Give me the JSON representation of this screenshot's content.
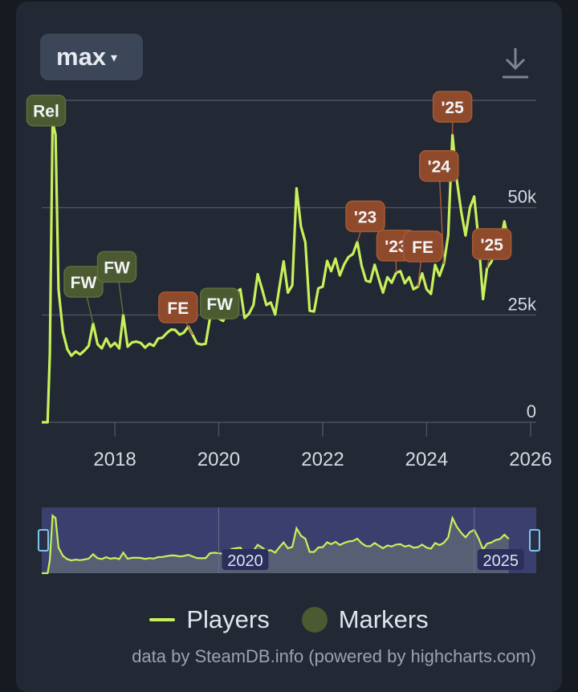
{
  "controls": {
    "range_label": "max",
    "range_caret": "▾",
    "download_icon": "download-icon"
  },
  "legend": {
    "players_label": "Players",
    "markers_label": "Markers"
  },
  "credits": "data by SteamDB.info (powered by highcharts.com)",
  "colors": {
    "series": "#c8f05a",
    "marker_green": "#4b5a30",
    "marker_orange": "#8f4a2c",
    "nav_bg": "#3a3f6e",
    "background": "#222834"
  },
  "chart_data": {
    "type": "line",
    "y_ticks": [
      {
        "value": 0,
        "label": "0"
      },
      {
        "value": 25000,
        "label": "25k"
      },
      {
        "value": 50000,
        "label": "50k"
      }
    ],
    "ylim": [
      0,
      75000
    ],
    "x_ticks": [
      {
        "value": "2018-01-01",
        "label": "2018"
      },
      {
        "value": "2020-01-01",
        "label": "2020"
      },
      {
        "value": "2022-01-01",
        "label": "2022"
      },
      {
        "value": "2024-01-01",
        "label": "2024"
      },
      {
        "value": "2026-01-01",
        "label": "2026"
      }
    ],
    "xlim": [
      "2016-08-05",
      "2026-02-10"
    ],
    "series": [
      {
        "name": "Players",
        "points": [
          [
            "2016-08-05",
            0
          ],
          [
            "2016-09-15",
            0
          ],
          [
            "2016-10-01",
            16000
          ],
          [
            "2016-10-20",
            70000
          ],
          [
            "2016-11-10",
            67000
          ],
          [
            "2016-12-01",
            31000
          ],
          [
            "2017-01-01",
            21000
          ],
          [
            "2017-02-01",
            17000
          ],
          [
            "2017-03-01",
            15500
          ],
          [
            "2017-04-01",
            16500
          ],
          [
            "2017-05-01",
            15800
          ],
          [
            "2017-06-01",
            16700
          ],
          [
            "2017-07-01",
            17800
          ],
          [
            "2017-08-01",
            23000
          ],
          [
            "2017-09-01",
            18200
          ],
          [
            "2017-10-01",
            17200
          ],
          [
            "2017-11-01",
            19500
          ],
          [
            "2017-12-01",
            17600
          ],
          [
            "2018-01-01",
            18500
          ],
          [
            "2018-02-01",
            17200
          ],
          [
            "2018-03-01",
            25000
          ],
          [
            "2018-04-01",
            17600
          ],
          [
            "2018-05-01",
            18600
          ],
          [
            "2018-06-01",
            18800
          ],
          [
            "2018-07-01",
            18500
          ],
          [
            "2018-08-01",
            17400
          ],
          [
            "2018-09-01",
            18300
          ],
          [
            "2018-10-01",
            17800
          ],
          [
            "2018-11-01",
            19500
          ],
          [
            "2018-12-01",
            19700
          ],
          [
            "2019-01-01",
            20800
          ],
          [
            "2019-02-01",
            21600
          ],
          [
            "2019-03-01",
            21500
          ],
          [
            "2019-04-01",
            20400
          ],
          [
            "2019-05-01",
            20900
          ],
          [
            "2019-06-01",
            22300
          ],
          [
            "2019-07-01",
            20400
          ],
          [
            "2019-08-01",
            18400
          ],
          [
            "2019-09-01",
            18100
          ],
          [
            "2019-10-01",
            18300
          ],
          [
            "2019-11-01",
            24300
          ],
          [
            "2019-12-01",
            24900
          ],
          [
            "2020-01-01",
            24200
          ],
          [
            "2020-02-01",
            23600
          ],
          [
            "2020-03-01",
            25600
          ],
          [
            "2020-04-01",
            29500
          ],
          [
            "2020-05-01",
            30200
          ],
          [
            "2020-06-01",
            31000
          ],
          [
            "2020-07-01",
            24300
          ],
          [
            "2020-08-01",
            25300
          ],
          [
            "2020-09-01",
            27300
          ],
          [
            "2020-10-01",
            34500
          ],
          [
            "2020-11-01",
            31000
          ],
          [
            "2020-12-01",
            27300
          ],
          [
            "2021-01-01",
            27900
          ],
          [
            "2021-02-01",
            25100
          ],
          [
            "2021-03-01",
            31200
          ],
          [
            "2021-04-01",
            37500
          ],
          [
            "2021-05-01",
            30200
          ],
          [
            "2021-06-01",
            31900
          ],
          [
            "2021-07-01",
            54500
          ],
          [
            "2021-08-01",
            45600
          ],
          [
            "2021-09-01",
            41900
          ],
          [
            "2021-10-01",
            26000
          ],
          [
            "2021-11-01",
            25800
          ],
          [
            "2021-12-01",
            31200
          ],
          [
            "2022-01-01",
            31600
          ],
          [
            "2022-02-01",
            37600
          ],
          [
            "2022-03-01",
            35200
          ],
          [
            "2022-04-01",
            38100
          ],
          [
            "2022-05-01",
            34200
          ],
          [
            "2022-06-01",
            36800
          ],
          [
            "2022-07-01",
            38500
          ],
          [
            "2022-08-01",
            39200
          ],
          [
            "2022-09-01",
            42000
          ],
          [
            "2022-10-01",
            36500
          ],
          [
            "2022-11-01",
            33000
          ],
          [
            "2022-12-01",
            32700
          ],
          [
            "2023-01-01",
            36700
          ],
          [
            "2023-02-01",
            33200
          ],
          [
            "2023-03-01",
            30200
          ],
          [
            "2023-04-01",
            33800
          ],
          [
            "2023-05-01",
            32500
          ],
          [
            "2023-06-01",
            34800
          ],
          [
            "2023-07-01",
            35200
          ],
          [
            "2023-08-01",
            32400
          ],
          [
            "2023-09-01",
            33800
          ],
          [
            "2023-10-01",
            31000
          ],
          [
            "2023-11-01",
            31600
          ],
          [
            "2023-12-01",
            34700
          ],
          [
            "2024-01-01",
            31000
          ],
          [
            "2024-02-01",
            29900
          ],
          [
            "2024-03-01",
            36700
          ],
          [
            "2024-04-01",
            34100
          ],
          [
            "2024-05-01",
            36900
          ],
          [
            "2024-06-01",
            43500
          ],
          [
            "2024-07-01",
            67000
          ],
          [
            "2024-08-01",
            56300
          ],
          [
            "2024-09-01",
            49000
          ],
          [
            "2024-10-01",
            43500
          ],
          [
            "2024-11-01",
            50000
          ],
          [
            "2024-12-01",
            52600
          ],
          [
            "2025-01-01",
            42300
          ],
          [
            "2025-02-01",
            28700
          ],
          [
            "2025-03-01",
            35900
          ],
          [
            "2025-04-01",
            37400
          ],
          [
            "2025-05-01",
            40300
          ],
          [
            "2025-06-01",
            41600
          ],
          [
            "2025-07-01",
            46800
          ],
          [
            "2025-08-01",
            41700
          ]
        ]
      }
    ],
    "markers": [
      {
        "label": "Rel",
        "date": "2016-10-20",
        "kind": "green"
      },
      {
        "label": "FW",
        "date": "2017-08-01",
        "kind": "green"
      },
      {
        "label": "FW",
        "date": "2018-03-01",
        "kind": "green"
      },
      {
        "label": "FE",
        "date": "2019-07-01",
        "kind": "orange"
      },
      {
        "label": "FW",
        "date": "2019-11-01",
        "kind": "green"
      },
      {
        "label": "'23",
        "date": "2022-09-01",
        "kind": "orange"
      },
      {
        "label": "'23",
        "date": "2023-06-01",
        "kind": "orange"
      },
      {
        "label": "FE",
        "date": "2023-11-01",
        "kind": "orange"
      },
      {
        "label": "'24",
        "date": "2024-05-01",
        "kind": "orange"
      },
      {
        "label": "'25",
        "date": "2024-07-01",
        "kind": "orange"
      },
      {
        "label": "'25",
        "date": "2025-03-01",
        "kind": "orange"
      }
    ],
    "navigator": {
      "labels": [
        {
          "date": "2020-01-01",
          "label": "2020"
        },
        {
          "date": "2024-12-01",
          "label": "2025"
        }
      ]
    }
  }
}
